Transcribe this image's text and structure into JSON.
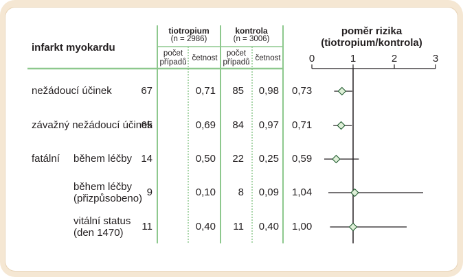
{
  "table": {
    "outcome_header": "infarkt myokardu",
    "groups": [
      {
        "label": "tiotropium",
        "n_label": "(n = 2986)"
      },
      {
        "label": "kontrola",
        "n_label": "(n = 3006)"
      }
    ],
    "sub_headers": {
      "count": [
        "počet",
        "případů"
      ],
      "rate": "četnost"
    },
    "rows": [
      {
        "category": "",
        "label": [
          "nežádoucí účinek"
        ],
        "tio_count": "67",
        "tio_rate": "0,71",
        "ctl_count": "85",
        "ctl_rate": "0,98",
        "hr": "0,73"
      },
      {
        "category": "",
        "label": [
          "závažný nežádoucí účinek"
        ],
        "tio_count": "65",
        "tio_rate": "0,69",
        "ctl_count": "84",
        "ctl_rate": "0,97",
        "hr": "0,71"
      },
      {
        "category": "fatální",
        "label": [
          "během léčby"
        ],
        "tio_count": "14",
        "tio_rate": "0,50",
        "ctl_count": "22",
        "ctl_rate": "0,25",
        "hr": "0,59"
      },
      {
        "category": "",
        "label": [
          "během léčby",
          "(přizpůsobeno)"
        ],
        "tio_count": "9",
        "tio_rate": "0,10",
        "ctl_count": "8",
        "ctl_rate": "0,09",
        "hr": "1,04"
      },
      {
        "category": "",
        "label": [
          "vitální status",
          "(den 1470)"
        ],
        "tio_count": "11",
        "tio_rate": "0,40",
        "ctl_count": "11",
        "ctl_rate": "0,40",
        "hr": "1,00"
      }
    ]
  },
  "chart_data": {
    "type": "scatter",
    "title": [
      "poměr rizika",
      "(tiotropium/kontrola)"
    ],
    "xlim": [
      0,
      3
    ],
    "x_ticks": [
      0,
      1,
      2,
      3
    ],
    "reference_line": 1,
    "points": [
      {
        "hr": 0.73,
        "ci_low": 0.54,
        "ci_high": 0.98
      },
      {
        "hr": 0.71,
        "ci_low": 0.52,
        "ci_high": 0.97
      },
      {
        "hr": 0.59,
        "ci_low": 0.3,
        "ci_high": 1.14
      },
      {
        "hr": 1.04,
        "ci_low": 0.4,
        "ci_high": 2.7
      },
      {
        "hr": 1.0,
        "ci_low": 0.44,
        "ci_high": 2.3
      }
    ],
    "marker": "diamond",
    "colors": {
      "lines": "#8dc88d",
      "marker_fill": "#dff0d8",
      "axis": "#231f20"
    }
  }
}
